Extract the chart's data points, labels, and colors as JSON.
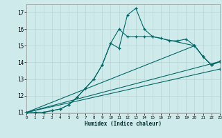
{
  "xlabel": "Humidex (Indice chaleur)",
  "bg_color": "#ceeaea",
  "grid_color": "#b8d4d4",
  "line_color": "#006666",
  "xlim": [
    0,
    23
  ],
  "ylim": [
    11,
    17.5
  ],
  "yticks": [
    11,
    12,
    13,
    14,
    15,
    16,
    17
  ],
  "xticks": [
    0,
    1,
    2,
    3,
    4,
    5,
    6,
    7,
    8,
    9,
    10,
    11,
    12,
    13,
    14,
    15,
    16,
    17,
    18,
    19,
    20,
    21,
    22,
    23
  ],
  "series": [
    {
      "x": [
        0,
        1,
        2,
        3,
        4,
        5,
        6,
        7,
        8,
        9,
        10,
        11,
        12,
        13,
        14,
        15,
        16,
        17,
        18,
        19,
        20,
        21,
        22,
        23
      ],
      "y": [
        11,
        11,
        11,
        11.1,
        11.2,
        11.45,
        11.9,
        12.45,
        13.0,
        13.85,
        15.15,
        14.85,
        16.85,
        17.25,
        16.0,
        15.55,
        15.45,
        15.3,
        15.3,
        15.4,
        15.0,
        14.35,
        13.85,
        14.05
      ]
    },
    {
      "x": [
        0,
        2,
        3,
        4,
        5,
        6,
        7,
        8,
        9,
        10,
        11,
        12,
        13,
        14,
        15,
        20,
        21,
        22,
        23
      ],
      "y": [
        11,
        11,
        11.1,
        11.2,
        11.45,
        11.9,
        12.45,
        13.0,
        13.85,
        15.15,
        16.0,
        15.55,
        15.55,
        15.55,
        15.55,
        15.0,
        14.35,
        13.85,
        14.05
      ]
    },
    {
      "x": [
        0,
        20,
        21,
        22,
        23
      ],
      "y": [
        11,
        15.0,
        14.35,
        13.85,
        14.05
      ]
    },
    {
      "x": [
        0,
        23
      ],
      "y": [
        11,
        14.05
      ]
    },
    {
      "x": [
        0,
        23
      ],
      "y": [
        11,
        13.6
      ]
    }
  ]
}
